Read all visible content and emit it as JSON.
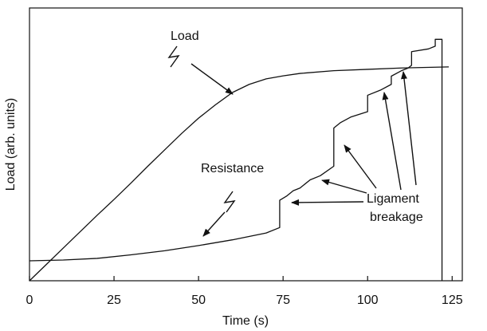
{
  "chart_data": {
    "type": "line",
    "xlabel": "Time (s)",
    "ylabel": "Load (arb. units)",
    "xlim": [
      0,
      128
    ],
    "xticks": [
      0,
      25,
      50,
      75,
      100,
      125
    ],
    "ylim": [
      0,
      100
    ],
    "series": [
      {
        "name": "Load",
        "color": "#111111",
        "x": [
          0,
          5,
          10,
          15,
          20,
          25,
          30,
          35,
          40,
          45,
          50,
          55,
          60,
          65,
          70,
          75,
          80,
          90,
          100,
          110,
          124
        ],
        "values": [
          0,
          6,
          12,
          18,
          24,
          29.8,
          35.8,
          42,
          48,
          54,
          59.6,
          64.5,
          69,
          72,
          74,
          75.1,
          76,
          77,
          77.5,
          78,
          78.4
        ]
      },
      {
        "name": "Resistance",
        "color": "#111111",
        "x": [
          0,
          10,
          20,
          30,
          40,
          50,
          60,
          70,
          74,
          74,
          76,
          78,
          80,
          83,
          86,
          90,
          90,
          92,
          95,
          100,
          100,
          104,
          107,
          107,
          110,
          112,
          113,
          113,
          118,
          120,
          120,
          122,
          122
        ],
        "values": [
          7.3,
          7.6,
          8.2,
          9.5,
          11,
          12.9,
          15,
          17.5,
          19.5,
          29.5,
          31,
          33,
          34,
          37,
          38.5,
          42,
          56,
          58,
          60,
          62,
          68,
          70,
          72,
          75,
          77,
          78,
          79,
          84,
          85,
          86,
          88.5,
          88.5,
          0
        ]
      }
    ],
    "annotation": {
      "lines": [
        "Ligament",
        "breakage"
      ]
    }
  }
}
